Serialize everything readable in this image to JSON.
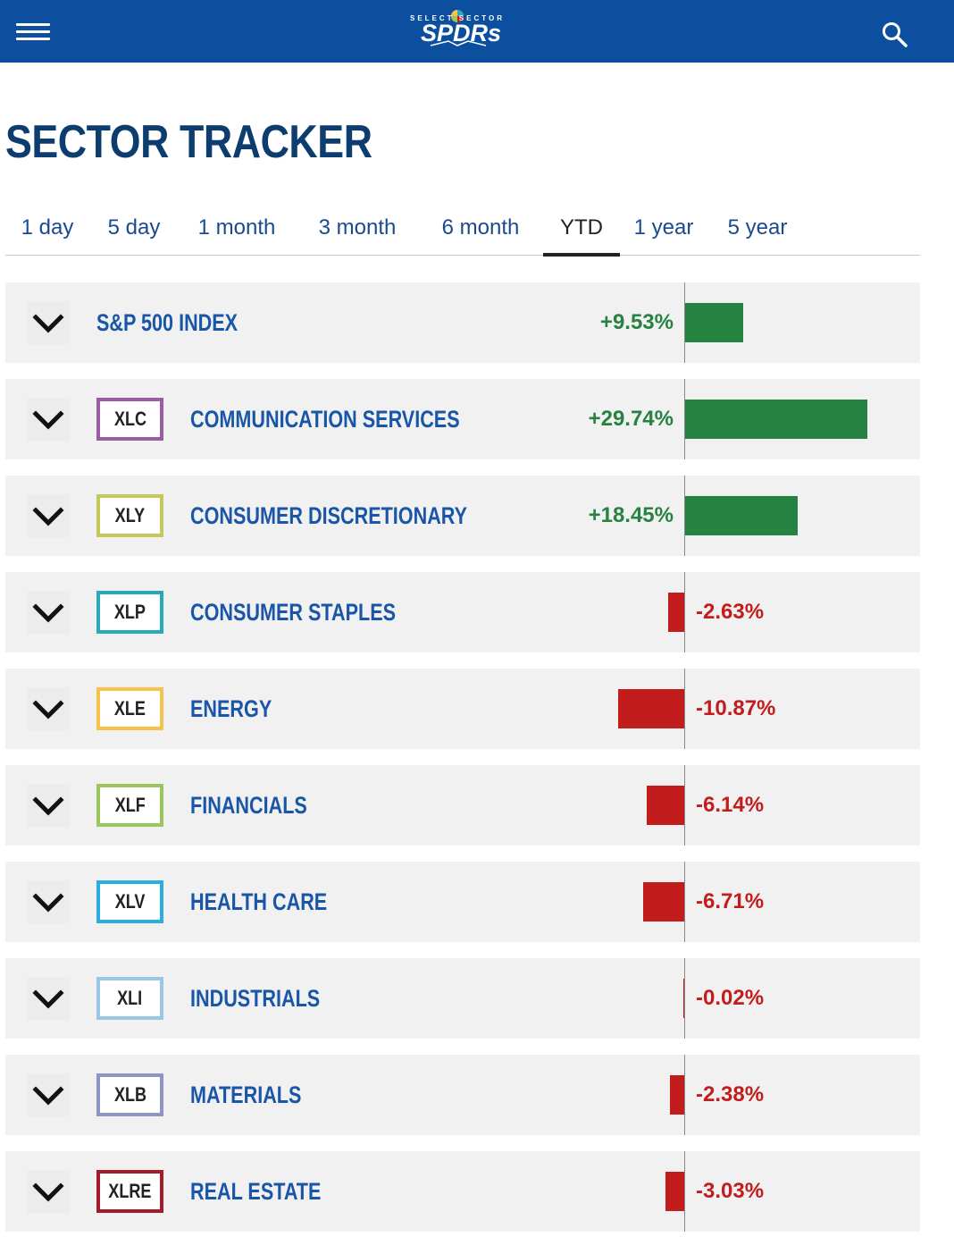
{
  "header": {
    "logo_top_text": "SELECT SECTOR",
    "logo_main_text": "SPDRs",
    "menu_icon": "hamburger-menu-icon",
    "search_icon": "search-icon"
  },
  "page_title": "SECTOR TRACKER",
  "tabs": [
    {
      "label": "1 day",
      "active": false
    },
    {
      "label": "5 day",
      "active": false
    },
    {
      "label": "1 month",
      "active": false
    },
    {
      "label": "3 month",
      "active": false
    },
    {
      "label": "6 month",
      "active": false
    },
    {
      "label": "YTD",
      "active": true
    },
    {
      "label": "1 year",
      "active": false
    },
    {
      "label": "5 year",
      "active": false
    }
  ],
  "rows": [
    {
      "ticker": "",
      "name": "S&P 500 INDEX",
      "value": 9.53,
      "pct": "+9.53%",
      "color": ""
    },
    {
      "ticker": "XLC",
      "name": "COMMUNICATION SERVICES",
      "value": 29.74,
      "pct": "+29.74%",
      "color": "#9b5ba5"
    },
    {
      "ticker": "XLY",
      "name": "CONSUMER DISCRETIONARY",
      "value": 18.45,
      "pct": "+18.45%",
      "color": "#c5c95a"
    },
    {
      "ticker": "XLP",
      "name": "CONSUMER STAPLES",
      "value": -2.63,
      "pct": "-2.63%",
      "color": "#2aaab8"
    },
    {
      "ticker": "XLE",
      "name": "ENERGY",
      "value": -10.87,
      "pct": "-10.87%",
      "color": "#f6c24a"
    },
    {
      "ticker": "XLF",
      "name": "FINANCIALS",
      "value": -6.14,
      "pct": "-6.14%",
      "color": "#9cc65b"
    },
    {
      "ticker": "XLV",
      "name": "HEALTH CARE",
      "value": -6.71,
      "pct": "-6.71%",
      "color": "#29aee0"
    },
    {
      "ticker": "XLI",
      "name": "INDUSTRIALS",
      "value": -0.02,
      "pct": "-0.02%",
      "color": "#99c7e6"
    },
    {
      "ticker": "XLB",
      "name": "MATERIALS",
      "value": -2.38,
      "pct": "-2.38%",
      "color": "#8f95c3"
    },
    {
      "ticker": "XLRE",
      "name": "REAL ESTATE",
      "value": -3.03,
      "pct": "-3.03%",
      "color": "#a31c2c"
    }
  ],
  "colors": {
    "header_bg": "#0b4f9e",
    "title": "#0d3d6e",
    "link": "#1a56a8",
    "positive": "#268240",
    "negative": "#c21c1c",
    "row_bg": "#f1f1f1"
  }
}
